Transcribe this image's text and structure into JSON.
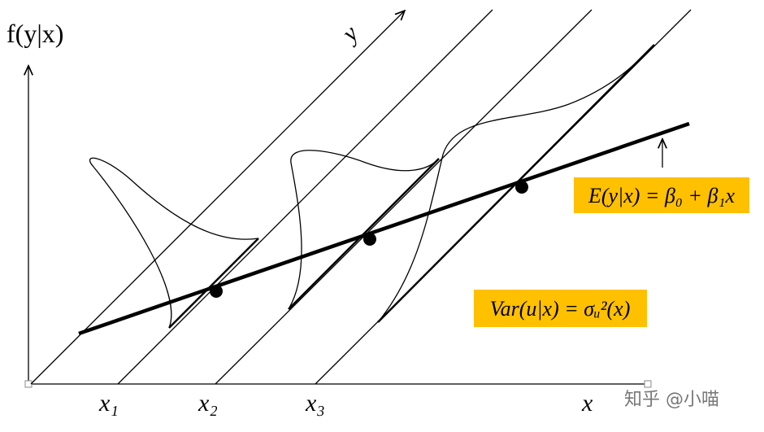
{
  "axis_labels": {
    "vertical": "f(y|x)",
    "diagonal": "y",
    "horizontal": "x"
  },
  "x_points": [
    "x₁",
    "x₂",
    "x₃"
  ],
  "equations": {
    "mean": "E(y|x) = β₀ + β₁x",
    "variance": "Var(u|x) = σᵤ²(x)"
  },
  "watermark": "知乎 @小喵"
}
